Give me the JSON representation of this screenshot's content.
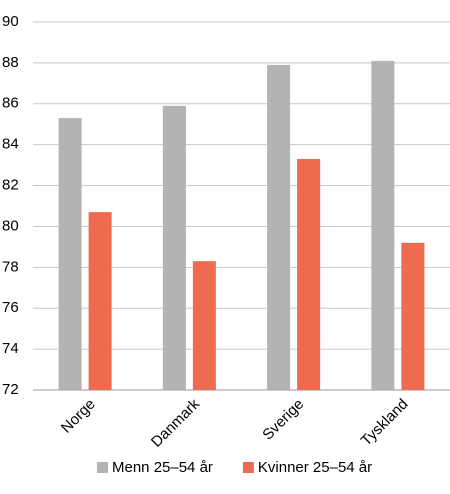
{
  "chart_data": {
    "type": "bar",
    "categories": [
      "Norge",
      "Danmark",
      "Sverige",
      "Tyskland"
    ],
    "series": [
      {
        "name": "Menn 25–54 år",
        "color": "#b3b3b3",
        "values": [
          85.3,
          85.9,
          87.9,
          88.1
        ]
      },
      {
        "name": "Kvinner 25–54 år",
        "color": "#ee6a50",
        "values": [
          80.7,
          78.3,
          83.3,
          79.2
        ]
      }
    ],
    "ylim": [
      72,
      90
    ],
    "yticks": [
      72,
      74,
      76,
      78,
      80,
      82,
      84,
      86,
      88,
      90
    ],
    "grid": true,
    "legend": "bottom"
  }
}
